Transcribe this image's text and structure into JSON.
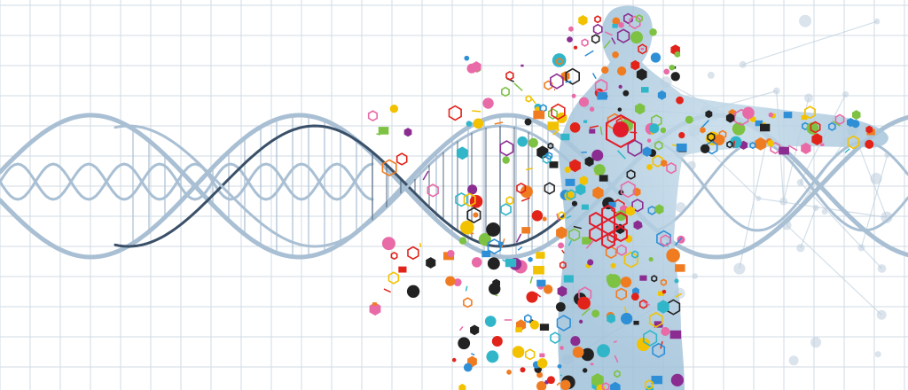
{
  "illustration": {
    "subject": "dna-helix-to-human-figure",
    "colors": {
      "background": "#ffffff",
      "grid": "#d2dbe4",
      "helix_light": "#a9bfd3",
      "helix_dark": "#3a5069",
      "body_fill": "#a6c6dd",
      "network": "#b7cad9",
      "accent_red": "#e21b2a",
      "particles": [
        "#e2231a",
        "#f2c200",
        "#7dc242",
        "#2e8fd6",
        "#8b2c91",
        "#e86aa6",
        "#222222",
        "#f07c22",
        "#31b6c9"
      ]
    }
  }
}
